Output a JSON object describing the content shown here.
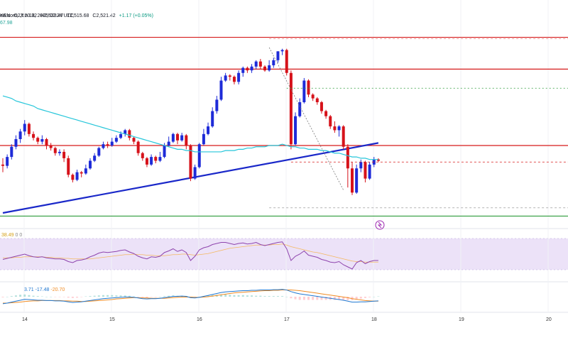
{
  "header": {
    "title": "ew.com, Jun 18, 2025 02:24 UTC",
    "source": "KEN",
    "open": "O2,520.32",
    "high": "H2,523.47",
    "low": "L2,515.68",
    "close": "C2,521.42",
    "change": "+1.17 (+0.05%)",
    "ma_value": "67.98"
  },
  "rsi_label": {
    "v1": "38.49",
    "v2": "0",
    "v3": "0"
  },
  "macd_label": {
    "v1": "3.71",
    "v2": "-17.48",
    "v3": "-20.70"
  },
  "colors": {
    "bull": "#1e2bd8",
    "bear": "#d6121a",
    "ma": "#26c6da",
    "resistance": "#d61b1b",
    "support": "#1a28c9",
    "green_line": "#2e9b3a",
    "rsi": "#8e44ad",
    "rsi_band": "#e9ddf7",
    "macd": "#1f77d0",
    "signal": "#f08c24"
  },
  "chart_data": {
    "type": "candlestick",
    "x_labels": [
      "14",
      "15",
      "16",
      "17",
      "18",
      "19",
      "20"
    ],
    "candles": [
      [
        58,
        57,
        63,
        52
      ],
      [
        57,
        64,
        66,
        55
      ],
      [
        64,
        72,
        74,
        62
      ],
      [
        72,
        78,
        81,
        70
      ],
      [
        78,
        84,
        86,
        75
      ],
      [
        84,
        90,
        93,
        81
      ],
      [
        90,
        82,
        91,
        80
      ],
      [
        82,
        79,
        84,
        77
      ],
      [
        79,
        76,
        80,
        74
      ],
      [
        76,
        78,
        81,
        74
      ],
      [
        78,
        73,
        79,
        70
      ],
      [
        73,
        71,
        75,
        69
      ],
      [
        71,
        67,
        72,
        65
      ],
      [
        67,
        68,
        70,
        65
      ],
      [
        68,
        63,
        70,
        60
      ],
      [
        63,
        50,
        65,
        48
      ],
      [
        50,
        46,
        51,
        44
      ],
      [
        46,
        52,
        54,
        45
      ],
      [
        52,
        51,
        53,
        48
      ],
      [
        51,
        55,
        58,
        50
      ],
      [
        55,
        61,
        63,
        54
      ],
      [
        61,
        65,
        67,
        60
      ],
      [
        65,
        71,
        72,
        64
      ],
      [
        71,
        74,
        76,
        70
      ],
      [
        74,
        73,
        76,
        71
      ],
      [
        73,
        76,
        79,
        72
      ],
      [
        76,
        79,
        81,
        75
      ],
      [
        79,
        82,
        84,
        78
      ],
      [
        82,
        85,
        86,
        80
      ],
      [
        85,
        79,
        86,
        77
      ],
      [
        79,
        76,
        80,
        74
      ],
      [
        76,
        67,
        77,
        65
      ],
      [
        67,
        63,
        68,
        61
      ],
      [
        63,
        58,
        64,
        56
      ],
      [
        58,
        64,
        66,
        57
      ],
      [
        64,
        61,
        65,
        59
      ],
      [
        61,
        64,
        68,
        60
      ],
      [
        64,
        73,
        75,
        63
      ],
      [
        73,
        76,
        80,
        72
      ],
      [
        76,
        82,
        83,
        75
      ],
      [
        82,
        77,
        83,
        74
      ],
      [
        77,
        81,
        83,
        76
      ],
      [
        81,
        73,
        82,
        70
      ],
      [
        73,
        47,
        74,
        45
      ],
      [
        47,
        56,
        58,
        46
      ],
      [
        56,
        74,
        75,
        55
      ],
      [
        74,
        82,
        86,
        73
      ],
      [
        82,
        88,
        91,
        81
      ],
      [
        88,
        100,
        103,
        87
      ],
      [
        100,
        109,
        112,
        98
      ],
      [
        109,
        124,
        127,
        108
      ],
      [
        124,
        128,
        130,
        123
      ],
      [
        128,
        127,
        129,
        124
      ],
      [
        127,
        123,
        128,
        121
      ],
      [
        123,
        130,
        132,
        121
      ],
      [
        130,
        134,
        135,
        127
      ],
      [
        134,
        132,
        135,
        130
      ],
      [
        132,
        135,
        137,
        130
      ],
      [
        135,
        139,
        140,
        133
      ],
      [
        139,
        135,
        141,
        133
      ],
      [
        135,
        132,
        136,
        131
      ],
      [
        132,
        136,
        140,
        131
      ],
      [
        136,
        140,
        142,
        134
      ],
      [
        140,
        147,
        147,
        138
      ],
      [
        147,
        148,
        149,
        144
      ],
      [
        148,
        130,
        149,
        128
      ],
      [
        130,
        74,
        132,
        70
      ],
      [
        74,
        96,
        99,
        73
      ],
      [
        96,
        107,
        110,
        95
      ],
      [
        107,
        124,
        126,
        106
      ],
      [
        124,
        113,
        125,
        111
      ],
      [
        113,
        110,
        114,
        108
      ],
      [
        110,
        107,
        111,
        105
      ],
      [
        107,
        100,
        108,
        98
      ],
      [
        100,
        96,
        101,
        94
      ],
      [
        96,
        88,
        97,
        86
      ],
      [
        88,
        85,
        92,
        83
      ],
      [
        85,
        88,
        89,
        80
      ],
      [
        88,
        72,
        89,
        70
      ],
      [
        72,
        55,
        74,
        40
      ],
      [
        55,
        36,
        60,
        34
      ],
      [
        36,
        55,
        58,
        35
      ],
      [
        55,
        60,
        62,
        52
      ],
      [
        60,
        47,
        61,
        44
      ],
      [
        47,
        58,
        60,
        46
      ],
      [
        58,
        62,
        64,
        56
      ],
      [
        62,
        61,
        63,
        60
      ]
    ],
    "ma_values": [
      112,
      111,
      110,
      108,
      107,
      106,
      105,
      104,
      102,
      101,
      100,
      99,
      98,
      97,
      96,
      95,
      94,
      93,
      92,
      91,
      90,
      89,
      88,
      87,
      86,
      85,
      84,
      83,
      82,
      81,
      80,
      79,
      78,
      77,
      76,
      75,
      74,
      73,
      72,
      71,
      70,
      70,
      69,
      69,
      68,
      68,
      68,
      68,
      68,
      68,
      68,
      69,
      69,
      69,
      70,
      70,
      71,
      71,
      72,
      72,
      72,
      73,
      73,
      73,
      74,
      73,
      72,
      72,
      71,
      71,
      70,
      70,
      70,
      69,
      69,
      68,
      67,
      67,
      66,
      65,
      64,
      64,
      63,
      63,
      62,
      62,
      62
    ],
    "y_range": [
      20,
      165
    ],
    "lines": [
      {
        "type": "resistance",
        "value": 158
      },
      {
        "type": "resistance",
        "value": 133
      },
      {
        "type": "resistance",
        "value": 73
      },
      {
        "type": "support_trend",
        "from": [
          0,
          20
        ],
        "to": [
          86,
          75
        ]
      },
      {
        "type": "support",
        "value": 22
      }
    ],
    "rsi_values": [
      42,
      44,
      46,
      48,
      50,
      52,
      49,
      47,
      46,
      47,
      45,
      44,
      43,
      43,
      42,
      38,
      36,
      40,
      41,
      43,
      47,
      50,
      54,
      56,
      55,
      56,
      57,
      59,
      60,
      56,
      53,
      48,
      45,
      43,
      47,
      46,
      48,
      55,
      58,
      62,
      57,
      60,
      55,
      40,
      48,
      60,
      64,
      66,
      70,
      72,
      74,
      74,
      72,
      70,
      72,
      73,
      71,
      72,
      74,
      70,
      68,
      70,
      72,
      74,
      75,
      62,
      40,
      48,
      52,
      58,
      50,
      48,
      46,
      42,
      40,
      37,
      36,
      38,
      32,
      28,
      24,
      36,
      40,
      34,
      38,
      40,
      40
    ],
    "rsi_ma": [
      45,
      45,
      45,
      46,
      46,
      47,
      47,
      47,
      47,
      47,
      46,
      46,
      45,
      45,
      44,
      44,
      43,
      43,
      43,
      43,
      43,
      44,
      45,
      46,
      47,
      48,
      49,
      50,
      51,
      51,
      52,
      51,
      51,
      50,
      50,
      49,
      49,
      49,
      50,
      51,
      51,
      52,
      52,
      51,
      50,
      51,
      52,
      53,
      55,
      57,
      59,
      61,
      63,
      64,
      65,
      66,
      67,
      68,
      69,
      69,
      69,
      69,
      70,
      70,
      71,
      69,
      66,
      64,
      62,
      60,
      58,
      56,
      55,
      53,
      51,
      49,
      47,
      45,
      43,
      41,
      39,
      38,
      38,
      37,
      37,
      37,
      37
    ],
    "macd_values": [
      -22,
      -20,
      -17,
      -14,
      -11,
      -8,
      -9,
      -10,
      -11,
      -11,
      -12,
      -12,
      -13,
      -13,
      -14,
      -16,
      -18,
      -17,
      -16,
      -14,
      -12,
      -10,
      -8,
      -6,
      -5,
      -4,
      -3,
      -2,
      -1,
      -1,
      -2,
      -4,
      -6,
      -7,
      -6,
      -6,
      -5,
      -3,
      -1,
      1,
      1,
      2,
      1,
      -3,
      -4,
      -2,
      1,
      4,
      7,
      10,
      13,
      15,
      16,
      17,
      18,
      19,
      19,
      20,
      20,
      21,
      21,
      21,
      22,
      22,
      23,
      21,
      16,
      12,
      9,
      7,
      5,
      3,
      1,
      -1,
      -3,
      -5,
      -7,
      -9,
      -11,
      -14,
      -17,
      -17,
      -16,
      -16,
      -15,
      -14,
      -13
    ],
    "macd_signal": [
      -20,
      -20,
      -19,
      -18,
      -17,
      -15,
      -14,
      -13,
      -13,
      -12,
      -12,
      -12,
      -12,
      -12,
      -13,
      -13,
      -14,
      -14,
      -15,
      -15,
      -14,
      -13,
      -12,
      -11,
      -10,
      -9,
      -7,
      -6,
      -5,
      -4,
      -3,
      -3,
      -4,
      -4,
      -5,
      -5,
      -5,
      -5,
      -4,
      -3,
      -2,
      -1,
      -1,
      -1,
      -2,
      -2,
      -1,
      0,
      2,
      4,
      6,
      8,
      10,
      12,
      13,
      14,
      15,
      16,
      17,
      18,
      19,
      19,
      20,
      20,
      21,
      21,
      21,
      20,
      19,
      17,
      15,
      13,
      11,
      9,
      7,
      5,
      3,
      1,
      -1,
      -3,
      -6,
      -8,
      -10,
      -12,
      -13,
      -14,
      -14
    ]
  }
}
